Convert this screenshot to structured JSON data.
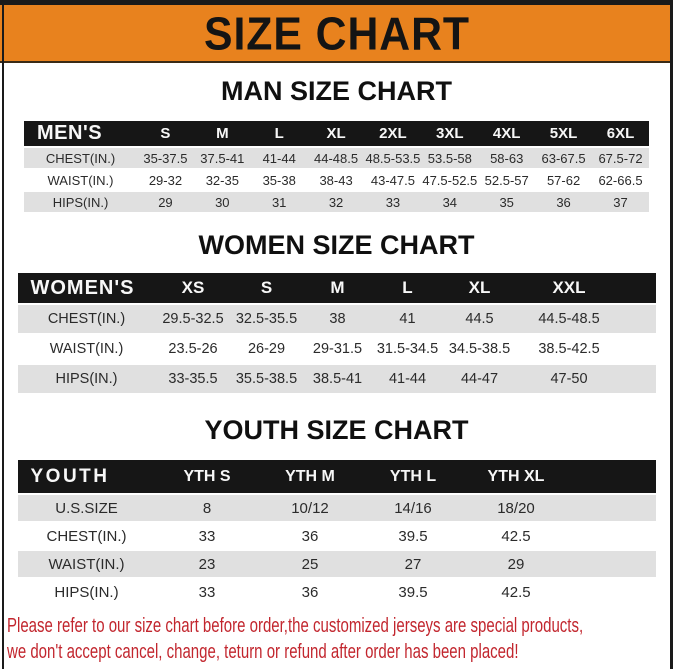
{
  "banner": {
    "title": "SIZE CHART"
  },
  "sections": {
    "men": {
      "title": "MAN SIZE CHART",
      "table": {
        "header": [
          "MEN'S",
          "S",
          "M",
          "L",
          "XL",
          "2XL",
          "3XL",
          "4XL",
          "5XL",
          "6XL"
        ],
        "rows": [
          [
            "CHEST(IN.)",
            "35-37.5",
            "37.5-41",
            "41-44",
            "44-48.5",
            "48.5-53.5",
            "53.5-58",
            "58-63",
            "63-67.5",
            "67.5-72"
          ],
          [
            "WAIST(IN.)",
            "29-32",
            "32-35",
            "35-38",
            "38-43",
            "43-47.5",
            "47.5-52.5",
            "52.5-57",
            "57-62",
            "62-66.5"
          ],
          [
            "HIPS(IN.)",
            "29",
            "30",
            "31",
            "32",
            "33",
            "34",
            "35",
            "36",
            "37"
          ]
        ]
      }
    },
    "women": {
      "title": "WOMEN SIZE CHART",
      "table": {
        "header": [
          "WOMEN'S",
          "XS",
          "S",
          "M",
          "L",
          "XL",
          "XXL"
        ],
        "rows": [
          [
            "CHEST(IN.)",
            "29.5-32.5",
            "32.5-35.5",
            "38",
            "41",
            "44.5",
            "44.5-48.5"
          ],
          [
            "WAIST(IN.)",
            "23.5-26",
            "26-29",
            "29-31.5",
            "31.5-34.5",
            "34.5-38.5",
            "38.5-42.5"
          ],
          [
            "HIPS(IN.)",
            "33-35.5",
            "35.5-38.5",
            "38.5-41",
            "41-44",
            "44-47",
            "47-50"
          ]
        ]
      }
    },
    "youth": {
      "title": "YOUTH SIZE CHART",
      "table": {
        "header": [
          "YOUTH",
          "YTH S",
          "YTH M",
          "YTH L",
          "YTH XL"
        ],
        "rows": [
          [
            "U.S.SIZE",
            "8",
            "10/12",
            "14/16",
            "18/20"
          ],
          [
            "CHEST(IN.)",
            "33",
            "36",
            "39.5",
            "42.5"
          ],
          [
            "WAIST(IN.)",
            "23",
            "25",
            "27",
            "29"
          ],
          [
            "HIPS(IN.)",
            "33",
            "36",
            "39.5",
            "42.5"
          ]
        ]
      }
    }
  },
  "footer": {
    "line1": "Please refer to our size chart before order,the customized jerseys are special products,",
    "line2": "we don't accept cancel, change, teturn or refund after order has been placed!"
  },
  "colors": {
    "banner_orange": "#E8821E",
    "header_black": "#161616",
    "row_gray": "#E0E0E0",
    "notice_red": "#C2262E",
    "frame_black": "#1A1A1A"
  }
}
